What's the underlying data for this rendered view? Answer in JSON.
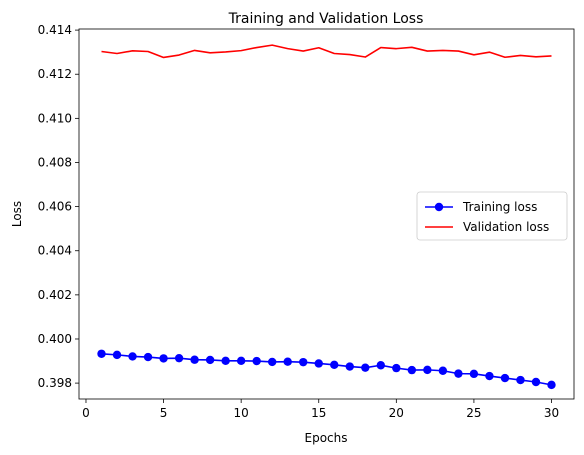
{
  "chart_data": {
    "type": "line",
    "title": "Training and Validation Loss",
    "xlabel": "Epochs",
    "ylabel": "Loss",
    "xlim": [
      -0.45,
      31.45
    ],
    "ylim": [
      0.39728,
      0.41405
    ],
    "xticks": [
      0,
      5,
      10,
      15,
      20,
      25,
      30
    ],
    "xtick_labels": [
      "0",
      "5",
      "10",
      "15",
      "20",
      "25",
      "30"
    ],
    "yticks": [
      0.398,
      0.4,
      0.402,
      0.404,
      0.406,
      0.408,
      0.41,
      0.412,
      0.414
    ],
    "ytick_labels": [
      "0.398",
      "0.400",
      "0.402",
      "0.404",
      "0.406",
      "0.408",
      "0.410",
      "0.412",
      "0.414"
    ],
    "grid": false,
    "legend_position": "center-right",
    "x": [
      1,
      2,
      3,
      4,
      5,
      6,
      7,
      8,
      9,
      10,
      11,
      12,
      13,
      14,
      15,
      16,
      17,
      18,
      19,
      20,
      21,
      22,
      23,
      24,
      25,
      26,
      27,
      28,
      29,
      30
    ],
    "series": [
      {
        "name": "Training loss",
        "color": "#0000ff",
        "marker": "circle",
        "values": [
          0.39933,
          0.39928,
          0.39921,
          0.39918,
          0.39912,
          0.39913,
          0.39906,
          0.39905,
          0.39901,
          0.39901,
          0.399,
          0.39896,
          0.39897,
          0.39895,
          0.39889,
          0.39883,
          0.39875,
          0.3987,
          0.39881,
          0.39868,
          0.39859,
          0.3986,
          0.39856,
          0.39843,
          0.39842,
          0.39832,
          0.39823,
          0.39814,
          0.39805,
          0.39792
        ]
      },
      {
        "name": "Validation loss",
        "color": "#ff0000",
        "marker": "none",
        "values": [
          0.41303,
          0.41294,
          0.41306,
          0.41303,
          0.41276,
          0.41287,
          0.41308,
          0.41297,
          0.41301,
          0.41307,
          0.41321,
          0.41332,
          0.41316,
          0.41305,
          0.4132,
          0.41294,
          0.41289,
          0.41278,
          0.41321,
          0.41316,
          0.41322,
          0.41305,
          0.41308,
          0.41305,
          0.41288,
          0.413,
          0.41277,
          0.41285,
          0.41279,
          0.41283
        ]
      }
    ]
  }
}
